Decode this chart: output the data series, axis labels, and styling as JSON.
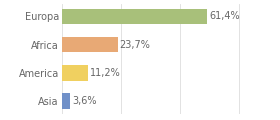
{
  "categories": [
    "Europa",
    "Africa",
    "America",
    "Asia"
  ],
  "values": [
    61.4,
    23.7,
    11.2,
    3.6
  ],
  "labels": [
    "61,4%",
    "23,7%",
    "11,2%",
    "3,6%"
  ],
  "bar_colors": [
    "#a8c07a",
    "#e8a975",
    "#f0d060",
    "#7090c8"
  ],
  "background_color": "#ffffff",
  "xlim": [
    0,
    78
  ],
  "bar_height": 0.55,
  "label_fontsize": 7,
  "tick_fontsize": 7,
  "grid_xticks": [
    0,
    25,
    50,
    75
  ],
  "grid_color": "#dddddd",
  "text_color": "#666666"
}
